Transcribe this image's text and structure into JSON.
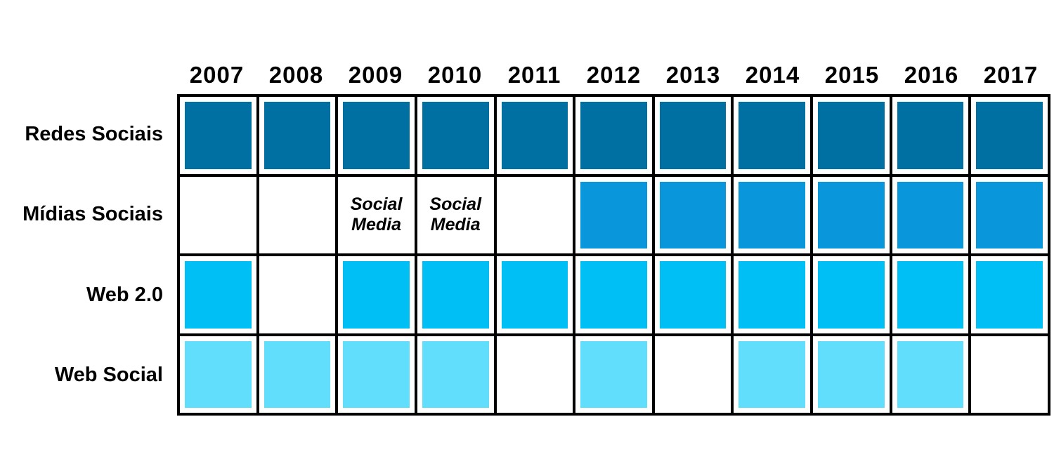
{
  "chart_data": {
    "type": "heatmap",
    "title": "",
    "x_categories": [
      "2007",
      "2008",
      "2009",
      "2010",
      "2011",
      "2012",
      "2013",
      "2014",
      "2015",
      "2016",
      "2017"
    ],
    "y_categories": [
      "Redes Sociais",
      "Mídias Sociais",
      "Web 2.0",
      "Web Social"
    ],
    "series": [
      {
        "name": "Redes Sociais",
        "color": "#0070A3",
        "values": [
          1,
          1,
          1,
          1,
          1,
          1,
          1,
          1,
          1,
          1,
          1
        ],
        "cell_labels": [
          "",
          "",
          "",
          "",
          "",
          "",
          "",
          "",
          "",
          "",
          ""
        ]
      },
      {
        "name": "Mídias Sociais",
        "color": "#0996DB",
        "values": [
          0,
          0,
          0,
          0,
          0,
          1,
          1,
          1,
          1,
          1,
          1
        ],
        "cell_labels": [
          "",
          "",
          "Social\nMedia",
          "Social\nMedia",
          "",
          "",
          "",
          "",
          "",
          "",
          ""
        ]
      },
      {
        "name": "Web 2.0",
        "color": "#00BFF5",
        "values": [
          1,
          0,
          1,
          1,
          1,
          1,
          1,
          1,
          1,
          1,
          1
        ],
        "cell_labels": [
          "",
          "",
          "",
          "",
          "",
          "",
          "",
          "",
          "",
          "",
          ""
        ]
      },
      {
        "name": "Web Social",
        "color": "#60DEFB",
        "values": [
          1,
          1,
          1,
          1,
          0,
          1,
          0,
          1,
          1,
          1,
          0
        ],
        "cell_labels": [
          "",
          "",
          "",
          "",
          "",
          "",
          "",
          "",
          "",
          "",
          ""
        ]
      }
    ],
    "annotations": [
      {
        "row": "Mídias Sociais",
        "year": "2009",
        "text": "Social Media"
      },
      {
        "row": "Mídias Sociais",
        "year": "2010",
        "text": "Social Media"
      }
    ],
    "legend": "none",
    "grid": true,
    "colors": {
      "border": "#000000",
      "background": "#FFFFFF",
      "text": "#000000"
    }
  }
}
